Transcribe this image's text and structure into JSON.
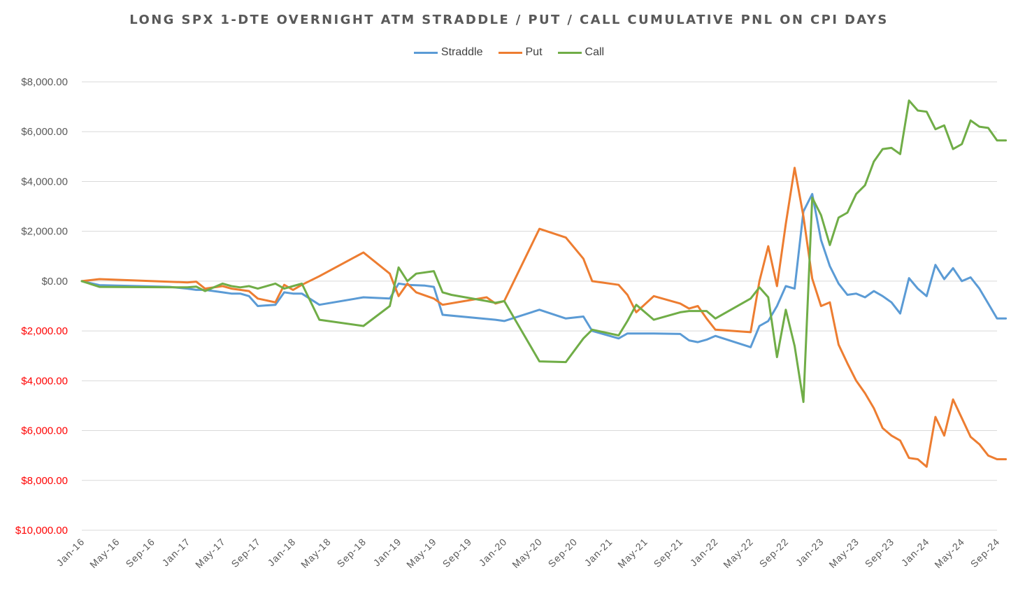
{
  "chart_data": {
    "type": "line",
    "title": "LONG SPX 1-DTE OVERNIGHT ATM STRADDLE / PUT / CALL CUMULATIVE PNL ON CPI DAYS",
    "xlabel": "",
    "ylabel": "",
    "ylim": [
      -10000,
      8000
    ],
    "ystep": 2000,
    "grid": true,
    "legend": "top-center",
    "y_tick_labels": [
      "$8,000.00",
      "$6,000.00",
      "$4,000.00",
      "$2,000.00",
      "$0.00",
      "$2,000.00",
      "$4,000.00",
      "$6,000.00",
      "$8,000.00",
      "$10,000.00"
    ],
    "y_tick_values": [
      8000,
      6000,
      4000,
      2000,
      0,
      -2000,
      -4000,
      -6000,
      -8000,
      -10000
    ],
    "negative_label_color": "#ff0000",
    "positive_label_color": "#595959",
    "x_tick_labels": [
      "Jan-16",
      "May-16",
      "Sep-16",
      "Jan-17",
      "May-17",
      "Sep-17",
      "Jan-18",
      "May-18",
      "Sep-18",
      "Jan-19",
      "May-19",
      "Sep-19",
      "Jan-20",
      "May-20",
      "Sep-20",
      "Jan-21",
      "May-21",
      "Sep-21",
      "Jan-22",
      "May-22",
      "Sep-22",
      "Jan-23",
      "May-23",
      "Sep-23",
      "Jan-24",
      "May-24",
      "Sep-24"
    ],
    "x_tick_values": [
      0,
      4,
      8,
      12,
      16,
      20,
      24,
      28,
      32,
      36,
      40,
      44,
      48,
      52,
      56,
      60,
      64,
      68,
      72,
      76,
      80,
      84,
      88,
      92,
      96,
      100,
      104
    ],
    "x_unit": "months since Jan-16",
    "series": [
      {
        "name": "Straddle",
        "color": "#5b9bd5",
        "x": [
          0,
          2,
          10,
          12,
          13,
          14,
          16,
          17,
          18,
          19,
          20,
          22,
          23,
          24,
          25,
          27,
          32,
          35,
          36,
          37,
          39,
          40,
          41,
          47,
          48,
          52,
          55,
          57,
          58,
          61,
          62,
          65,
          68,
          69,
          70,
          71,
          72,
          76,
          77,
          78,
          79,
          80,
          81,
          82,
          83,
          84,
          85,
          86,
          87,
          88,
          89,
          90,
          91,
          92,
          93,
          94,
          95,
          96,
          97,
          98,
          99,
          100,
          101,
          102,
          103,
          104,
          105
        ],
        "y": [
          0,
          -160,
          -230,
          -300,
          -350,
          -350,
          -450,
          -500,
          -500,
          -600,
          -1000,
          -950,
          -450,
          -500,
          -500,
          -950,
          -650,
          -700,
          -100,
          -150,
          -180,
          -230,
          -1350,
          -1550,
          -1600,
          -1150,
          -1500,
          -1420,
          -2000,
          -2300,
          -2100,
          -2100,
          -2120,
          -2380,
          -2450,
          -2350,
          -2200,
          -2650,
          -1800,
          -1600,
          -1000,
          -200,
          -300,
          2800,
          3500,
          1650,
          600,
          -100,
          -550,
          -500,
          -650,
          -400,
          -600,
          -850,
          -1300,
          120,
          -300,
          -600,
          650,
          80,
          520,
          0,
          150,
          -300,
          -900,
          -1500,
          -1500
        ]
      },
      {
        "name": "Put",
        "color": "#ed7d31",
        "x": [
          0,
          2,
          12,
          13,
          14,
          16,
          17,
          18,
          19,
          20,
          22,
          23,
          24,
          25,
          27,
          32,
          35,
          36,
          37,
          38,
          40,
          41,
          46,
          47,
          48,
          52,
          55,
          57,
          58,
          61,
          62,
          63,
          65,
          68,
          69,
          70,
          71,
          72,
          76,
          77,
          78,
          79,
          80,
          81,
          82,
          83,
          84,
          85,
          86,
          87,
          88,
          89,
          90,
          91,
          92,
          93,
          94,
          95,
          96,
          97,
          98,
          99,
          100,
          101,
          102,
          103,
          104,
          105
        ],
        "y": [
          0,
          80,
          -50,
          -20,
          -300,
          -200,
          -300,
          -350,
          -400,
          -700,
          -850,
          -150,
          -350,
          -150,
          200,
          1150,
          300,
          -600,
          -100,
          -450,
          -700,
          -950,
          -650,
          -900,
          -800,
          2100,
          1750,
          900,
          0,
          -150,
          -550,
          -1250,
          -600,
          -900,
          -1100,
          -1000,
          -1500,
          -1950,
          -2050,
          0,
          1400,
          -200,
          2300,
          4550,
          2600,
          100,
          -1000,
          -850,
          -2550,
          -3300,
          -4000,
          -4500,
          -5100,
          -5900,
          -6200,
          -6400,
          -7100,
          -7150,
          -7450,
          -5450,
          -6200,
          -4750,
          -5500,
          -6250,
          -6550,
          -7000,
          -7150,
          -7150
        ]
      },
      {
        "name": "Call",
        "color": "#70ad47",
        "x": [
          0,
          2,
          12,
          13,
          14,
          16,
          17,
          18,
          19,
          20,
          22,
          23,
          24,
          25,
          27,
          32,
          35,
          36,
          37,
          38,
          40,
          41,
          42,
          46,
          47,
          48,
          52,
          55,
          57,
          58,
          61,
          62,
          63,
          65,
          68,
          69,
          70,
          71,
          72,
          76,
          77,
          78,
          79,
          80,
          81,
          82,
          83,
          84,
          85,
          86,
          87,
          88,
          89,
          90,
          91,
          92,
          93,
          94,
          95,
          96,
          97,
          98,
          99,
          100,
          101,
          102,
          103,
          104,
          105
        ],
        "y": [
          0,
          -230,
          -250,
          -220,
          -400,
          -100,
          -200,
          -250,
          -200,
          -300,
          -100,
          -300,
          -200,
          -100,
          -1550,
          -1800,
          -1000,
          550,
          0,
          300,
          400,
          -450,
          -550,
          -800,
          -870,
          -800,
          -3220,
          -3250,
          -2300,
          -1950,
          -2180,
          -1600,
          -950,
          -1550,
          -1250,
          -1200,
          -1200,
          -1200,
          -1500,
          -700,
          -250,
          -650,
          -3050,
          -1150,
          -2600,
          -4850,
          3350,
          2650,
          1450,
          2550,
          2750,
          3500,
          3850,
          4800,
          5300,
          5350,
          5100,
          7250,
          6850,
          6800,
          6100,
          6250,
          5300,
          5500,
          6450,
          6200,
          6150,
          5650,
          5650
        ]
      }
    ]
  }
}
